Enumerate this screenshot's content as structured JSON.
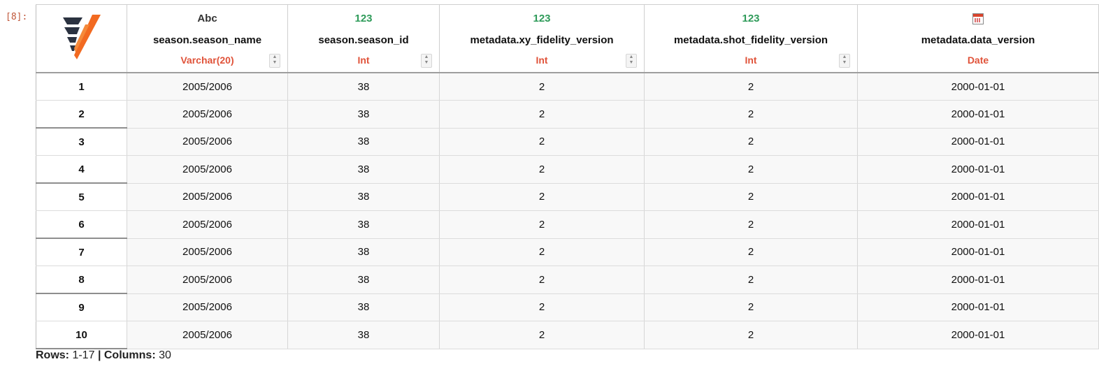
{
  "cell": {
    "prompt": "[8]:"
  },
  "columns": [
    {
      "icon": "abc-text-icon",
      "icon_text": "Abc",
      "name": "season.season_name",
      "type": "Varchar(20)",
      "spinner": true
    },
    {
      "icon": "numeric-123-icon",
      "icon_text": "123",
      "name": "season.season_id",
      "type": "Int",
      "spinner": true
    },
    {
      "icon": "numeric-123-icon",
      "icon_text": "123",
      "name": "metadata.xy_fidelity_version",
      "type": "Int",
      "spinner": true
    },
    {
      "icon": "numeric-123-icon",
      "icon_text": "123",
      "name": "metadata.shot_fidelity_version",
      "type": "Int",
      "spinner": true
    },
    {
      "icon": "calendar-icon",
      "icon_text": "",
      "name": "metadata.data_version",
      "type": "Date",
      "spinner": false
    }
  ],
  "rows": [
    {
      "num": "1",
      "cells": [
        "2005/2006",
        "38",
        "2",
        "2",
        "2000-01-01"
      ]
    },
    {
      "num": "2",
      "cells": [
        "2005/2006",
        "38",
        "2",
        "2",
        "2000-01-01"
      ]
    },
    {
      "num": "3",
      "cells": [
        "2005/2006",
        "38",
        "2",
        "2",
        "2000-01-01"
      ]
    },
    {
      "num": "4",
      "cells": [
        "2005/2006",
        "38",
        "2",
        "2",
        "2000-01-01"
      ]
    },
    {
      "num": "5",
      "cells": [
        "2005/2006",
        "38",
        "2",
        "2",
        "2000-01-01"
      ]
    },
    {
      "num": "6",
      "cells": [
        "2005/2006",
        "38",
        "2",
        "2",
        "2000-01-01"
      ]
    },
    {
      "num": "7",
      "cells": [
        "2005/2006",
        "38",
        "2",
        "2",
        "2000-01-01"
      ]
    },
    {
      "num": "8",
      "cells": [
        "2005/2006",
        "38",
        "2",
        "2",
        "2000-01-01"
      ]
    },
    {
      "num": "9",
      "cells": [
        "2005/2006",
        "38",
        "2",
        "2",
        "2000-01-01"
      ]
    },
    {
      "num": "10",
      "cells": [
        "2005/2006",
        "38",
        "2",
        "2",
        "2000-01-01"
      ]
    }
  ],
  "footer": {
    "rows_label": "Rows:",
    "rows_value": "1-17",
    "separator": "|",
    "columns_label": "Columns:",
    "columns_value": "30"
  },
  "colors": {
    "type_text": "#e0533a",
    "numeric_icon": "#2f9b5a",
    "logo_dark": "#2b3240",
    "logo_orange": "#f26a21"
  }
}
